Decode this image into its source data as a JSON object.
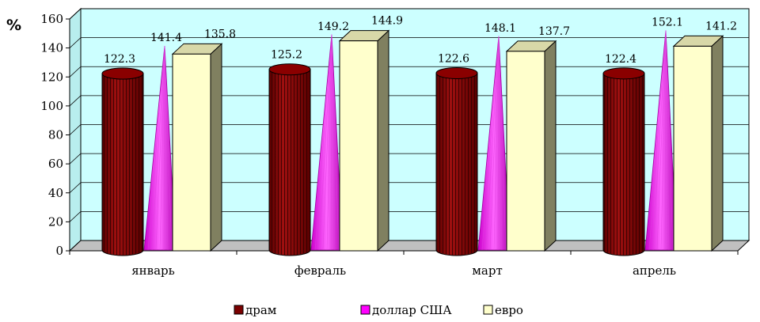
{
  "chart_data": {
    "type": "bar",
    "unit_label": "%",
    "categories": [
      "январь",
      "февраль",
      "март",
      "апрель"
    ],
    "series": [
      {
        "name": "драм",
        "values": [
          122.3,
          125.2,
          122.6,
          122.4
        ],
        "labels": [
          "122.3",
          "125.2",
          "122.6",
          "122.4"
        ],
        "color": "#7a0000",
        "shape": "cylinder"
      },
      {
        "name": "доллар США",
        "values": [
          141.4,
          149.2,
          148.1,
          152.1
        ],
        "labels": [
          "141.4",
          "149.2",
          "148.1",
          "152.1"
        ],
        "color": "#ff00ff",
        "shape": "cone"
      },
      {
        "name": "евро",
        "values": [
          135.8,
          144.9,
          137.7,
          141.2
        ],
        "labels": [
          "135.8",
          "144.9",
          "137.7",
          "141.2"
        ],
        "color": "#ffffcc",
        "shape": "box"
      }
    ],
    "yticks": [
      "0",
      "20",
      "40",
      "60",
      "80",
      "100",
      "120",
      "140",
      "160"
    ],
    "ylim": [
      0,
      160
    ],
    "grid": true,
    "legend": "bottom",
    "colors": {
      "wall": "#ccffff",
      "floor": "#c0c0c0",
      "box_side": "#808060",
      "box_top": "#d8d8a8"
    }
  }
}
